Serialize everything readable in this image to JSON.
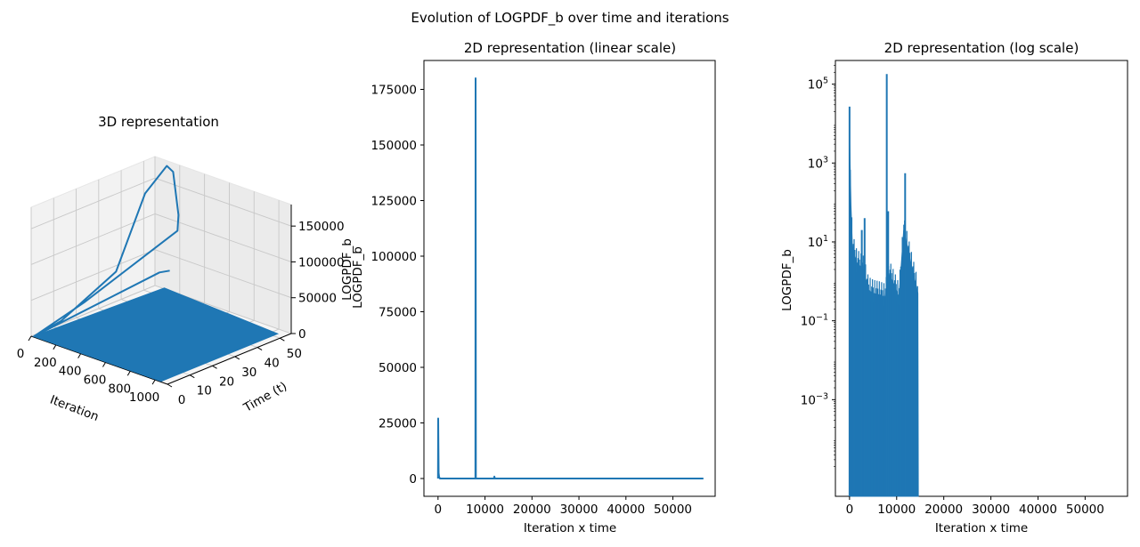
{
  "figure": {
    "suptitle": "Evolution of LOGPDF_b over time and iterations",
    "series_color": "#1f77b4"
  },
  "chart_data": [
    {
      "type": "surface3d",
      "title": "3D representation",
      "xlabel": "Iteration",
      "ylabel": "Time (t)",
      "zlabel": "LOGPDF_b",
      "xticks": [
        "0",
        "200",
        "400",
        "600",
        "800",
        "1000"
      ],
      "yticks": [
        "0",
        "10",
        "20",
        "30",
        "40",
        "50"
      ],
      "zticks": [
        "0",
        "50000",
        "100000",
        "150000"
      ],
      "xlim": [
        0,
        1100
      ],
      "ylim": [
        0,
        55
      ],
      "zlim": [
        0,
        180000
      ],
      "spike": {
        "iteration": 140,
        "time": 52,
        "peak": 180000
      },
      "grid": true
    },
    {
      "type": "line",
      "title": "2D representation (linear scale)",
      "xlabel": "Iteration x time",
      "ylabel": "LOGPDF_b",
      "xlim": [
        -3000,
        59000
      ],
      "ylim": [
        -8000,
        188000
      ],
      "xticks": [
        0,
        10000,
        20000,
        30000,
        40000,
        50000
      ],
      "yticks": [
        0,
        25000,
        50000,
        75000,
        100000,
        125000,
        150000,
        175000
      ],
      "points": [
        [
          0,
          0
        ],
        [
          40,
          27000
        ],
        [
          120,
          2500
        ],
        [
          220,
          800
        ],
        [
          400,
          0
        ],
        [
          7950,
          0
        ],
        [
          8000,
          180000
        ],
        [
          8050,
          0
        ],
        [
          11900,
          0
        ],
        [
          12000,
          900
        ],
        [
          12100,
          0
        ],
        [
          56500,
          0
        ]
      ],
      "grid": false
    },
    {
      "type": "line",
      "scale_y": "log",
      "title": "2D representation (log scale)",
      "xlabel": "Iteration x time",
      "ylabel": "LOGPDF_b",
      "xlim": [
        -3000,
        59000
      ],
      "ylim_log10": [
        -5.45,
        5.6
      ],
      "xticks": [
        0,
        10000,
        20000,
        30000,
        40000,
        50000
      ],
      "yticks": [
        "10^-3",
        "10^-1",
        "10^1",
        "10^3",
        "10^5"
      ],
      "spikes": [
        [
          0,
          27000
        ],
        [
          7900,
          180000
        ],
        [
          11800,
          550
        ],
        [
          3200,
          40
        ],
        [
          2600,
          20
        ],
        [
          8200,
          60
        ]
      ],
      "envelope": [
        [
          0,
          4000
        ],
        [
          300,
          80
        ],
        [
          600,
          8
        ],
        [
          1500,
          3
        ],
        [
          3000,
          2
        ],
        [
          4000,
          0.6
        ],
        [
          5000,
          0.5
        ],
        [
          6500,
          0.45
        ],
        [
          7500,
          0.4
        ],
        [
          8500,
          1.5
        ],
        [
          9500,
          0.8
        ],
        [
          10500,
          0.4
        ],
        [
          11500,
          20
        ],
        [
          13000,
          3
        ],
        [
          14500,
          0.5
        ]
      ],
      "fill_range": [
        0,
        14600
      ],
      "grid": false
    }
  ]
}
